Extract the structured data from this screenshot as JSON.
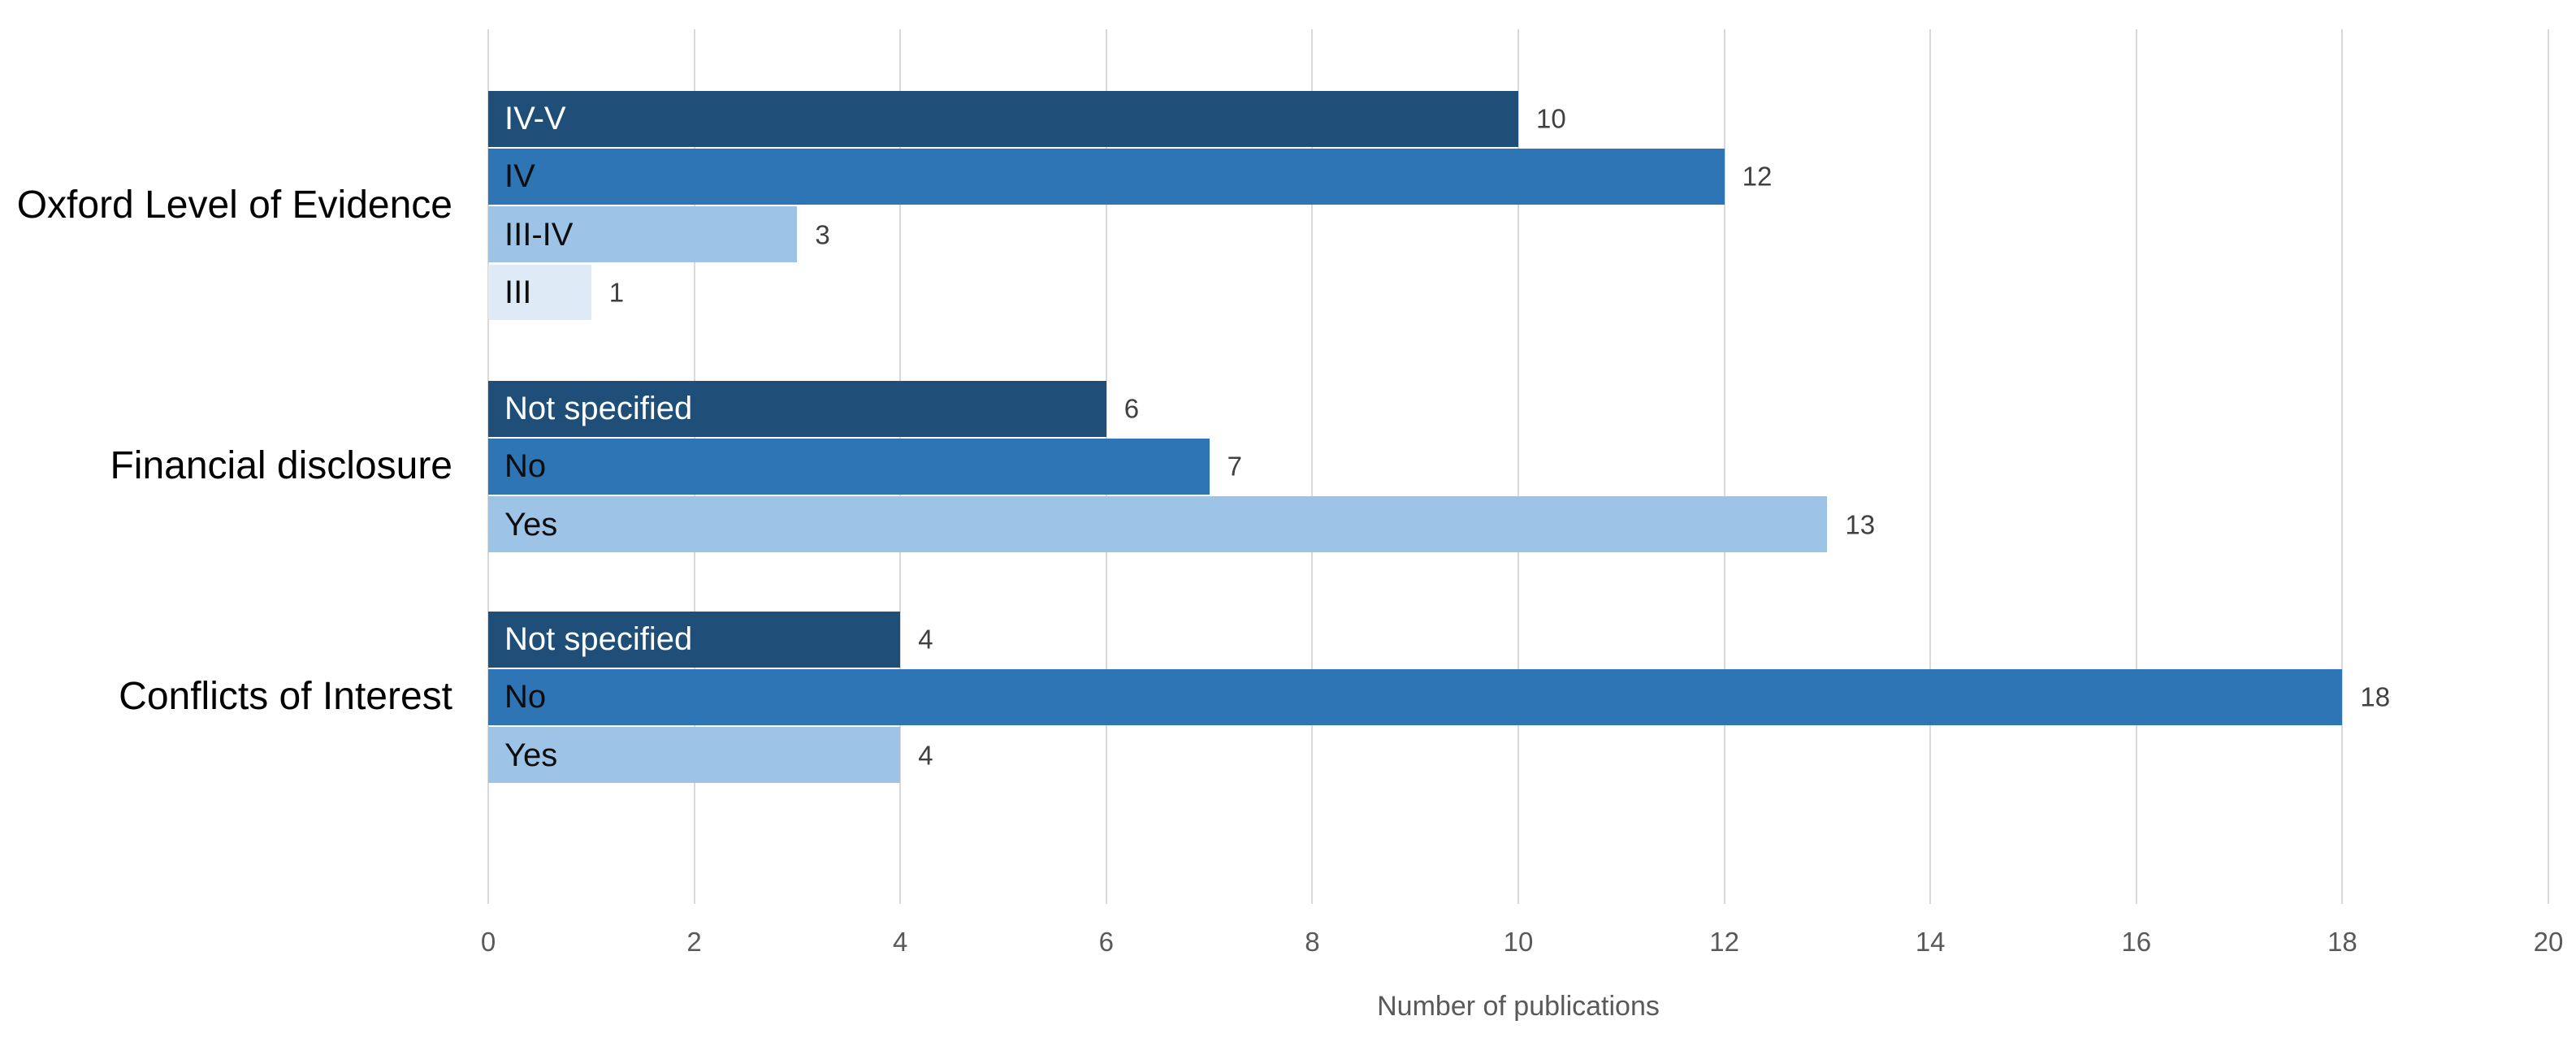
{
  "chart_data": {
    "type": "bar",
    "orientation": "horizontal",
    "title": "",
    "xlabel": "Number of publications",
    "ylabel": "",
    "xlim": [
      0,
      20
    ],
    "xticks": [
      0,
      2,
      4,
      6,
      8,
      10,
      12,
      14,
      16,
      18,
      20
    ],
    "grid": true,
    "legend": false,
    "groups": [
      {
        "label": "Oxford Level of Evidence",
        "bars": [
          {
            "label": "IV-V",
            "value": 10,
            "color": "#1F4E79",
            "label_color": "#FFFFFF"
          },
          {
            "label": "IV",
            "value": 12,
            "color": "#2E75B6",
            "label_color": "#0D0D0D"
          },
          {
            "label": "III-IV",
            "value": 3,
            "color": "#9DC3E6",
            "label_color": "#0D0D0D"
          },
          {
            "label": "III",
            "value": 1,
            "color": "#DEEBF7",
            "label_color": "#0D0D0D"
          }
        ]
      },
      {
        "label": "Financial disclosure",
        "bars": [
          {
            "label": "Not specified",
            "value": 6,
            "color": "#1F4E79",
            "label_color": "#FFFFFF"
          },
          {
            "label": "No",
            "value": 7,
            "color": "#2E75B6",
            "label_color": "#0D0D0D"
          },
          {
            "label": "Yes",
            "value": 13,
            "color": "#9DC3E6",
            "label_color": "#0D0D0D"
          }
        ]
      },
      {
        "label": "Conflicts of Interest",
        "bars": [
          {
            "label": "Not specified",
            "value": 4,
            "color": "#1F4E79",
            "label_color": "#FFFFFF"
          },
          {
            "label": "No",
            "value": 18,
            "color": "#2E75B6",
            "label_color": "#0D0D0D"
          },
          {
            "label": "Yes",
            "value": 4,
            "color": "#9DC3E6",
            "label_color": "#0D0D0D"
          }
        ]
      }
    ],
    "colors": {
      "grid": "#D9D9D9",
      "value_label": "#404040",
      "axis_text": "#595959",
      "category_label": "#000000",
      "background": "#FFFFFF"
    }
  }
}
